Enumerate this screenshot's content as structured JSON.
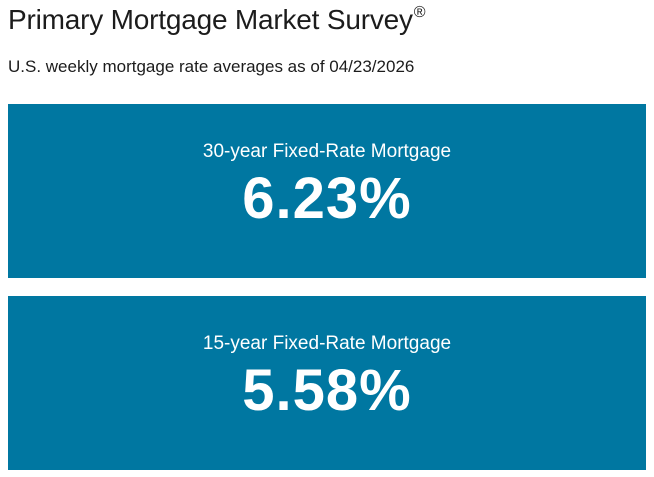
{
  "header": {
    "title": "Primary Mortgage Market Survey",
    "title_mark": "®",
    "subtitle": "U.S. weekly mortgage rate averages as of 04/23/2026"
  },
  "rates": [
    {
      "label": "30-year Fixed-Rate Mortgage",
      "value": "6.23%"
    },
    {
      "label": "15-year Fixed-Rate Mortgage",
      "value": "5.58%"
    }
  ],
  "colors": {
    "card_background": "#0077a1",
    "card_text": "#ffffff",
    "heading_text": "#1c1c1c"
  }
}
